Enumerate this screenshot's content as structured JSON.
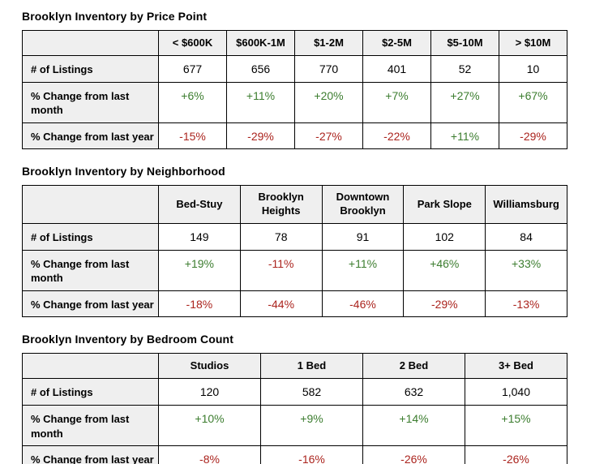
{
  "colors": {
    "positive": "#3c7d2f",
    "negative": "#ab241e",
    "header_bg": "#efefef",
    "border": "#000000",
    "text": "#000000",
    "background": "#ffffff"
  },
  "tables": [
    {
      "title": "Brooklyn Inventory by Price Point",
      "corner_label": "",
      "columns": [
        [
          "< $600K"
        ],
        [
          "$600K-1M"
        ],
        [
          "$1-2M"
        ],
        [
          "$2-5M"
        ],
        [
          "$5-10M"
        ],
        [
          "> $10M"
        ]
      ],
      "rows": [
        {
          "type": "count",
          "label_lines": [
            "# of Listings"
          ],
          "values": [
            "677",
            "656",
            "770",
            "401",
            "52",
            "10"
          ]
        },
        {
          "type": "month",
          "label_lines": [
            "% Change from last",
            "month"
          ],
          "values": [
            "+6%",
            "+11%",
            "+20%",
            "+7%",
            "+27%",
            "+67%"
          ]
        },
        {
          "type": "year",
          "label_lines": [
            "% Change from last year"
          ],
          "values": [
            "-15%",
            "-29%",
            "-27%",
            "-22%",
            "+11%",
            "-29%"
          ]
        }
      ]
    },
    {
      "title": "Brooklyn Inventory by Neighborhood",
      "corner_label": "",
      "columns": [
        [
          "Bed-Stuy"
        ],
        [
          "Brooklyn",
          "Heights"
        ],
        [
          "Downtown",
          "Brooklyn"
        ],
        [
          "Park Slope"
        ],
        [
          "Williamsburg"
        ]
      ],
      "rows": [
        {
          "type": "count",
          "label_lines": [
            "# of Listings"
          ],
          "values": [
            "149",
            "78",
            "91",
            "102",
            "84"
          ]
        },
        {
          "type": "month",
          "label_lines": [
            "% Change from last",
            "month"
          ],
          "values": [
            "+19%",
            "-11%",
            "+11%",
            "+46%",
            "+33%"
          ]
        },
        {
          "type": "year",
          "label_lines": [
            "% Change from last year"
          ],
          "values": [
            "-18%",
            "-44%",
            "-46%",
            "-29%",
            "-13%"
          ]
        }
      ]
    },
    {
      "title": "Brooklyn Inventory by Bedroom Count",
      "corner_label": "",
      "columns": [
        [
          "Studios"
        ],
        [
          "1 Bed"
        ],
        [
          "2 Bed"
        ],
        [
          "3+ Bed"
        ]
      ],
      "rows": [
        {
          "type": "count",
          "label_lines": [
            "# of Listings"
          ],
          "values": [
            "120",
            "582",
            "632",
            "1,040"
          ]
        },
        {
          "type": "month",
          "label_lines": [
            "% Change from last",
            "month"
          ],
          "values": [
            "+10%",
            "+9%",
            "+14%",
            "+15%"
          ]
        },
        {
          "type": "year",
          "label_lines": [
            "% Change from last year"
          ],
          "values": [
            "-8%",
            "-16%",
            "-26%",
            "-26%"
          ]
        }
      ]
    }
  ]
}
